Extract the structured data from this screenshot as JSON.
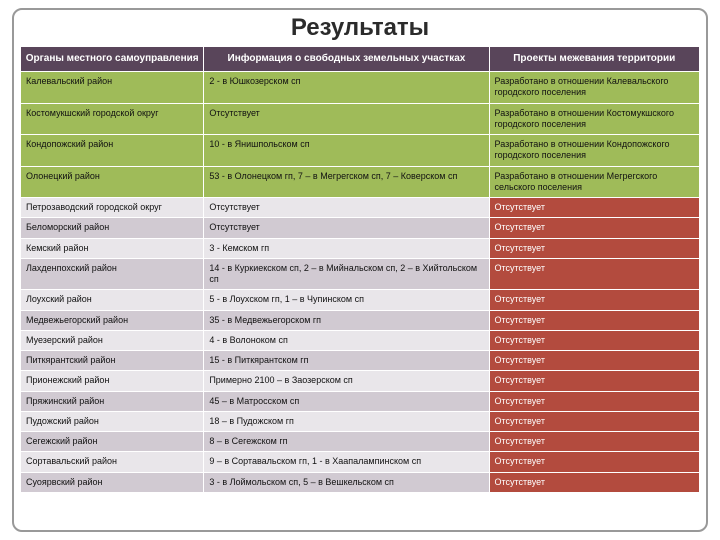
{
  "title": "Результаты",
  "columns": [
    "Органы местного самоуправления",
    "Информация о свободных земельных участках",
    "Проекты межевания территории"
  ],
  "colors": {
    "header_bg": "#59455a",
    "green_bg": "#9fbb59",
    "red_bg": "#b34b3e",
    "light_bg": "#e9e6ea",
    "dark_bg": "#d1cad2",
    "frame_border": "#999999"
  },
  "rows": [
    {
      "style": "green",
      "c1": "Калевальский район",
      "c2": "2 - в Юшкозерском сп",
      "c3": "Разработано в отношении Калевальского городского поселения"
    },
    {
      "style": "green",
      "c1": "Костомукшский городской округ",
      "c2": "Отсутствует",
      "c3": "Разработано в отношении Костомукшского городского поселения"
    },
    {
      "style": "green",
      "c1": "Кондопожский район",
      "c2": "10 - в Янишпольском сп",
      "c3": "Разработано в отношении Кондопожского городского поселения"
    },
    {
      "style": "green",
      "c1": "Олонецкий район",
      "c2": "53 - в Олонецком гп, 7 – в Мегрегском сп, 7 – Коверском сп",
      "c3": "Разработано в отношении Мегрегского сельского поселения"
    },
    {
      "style": "light",
      "c1": "Петрозаводский городской округ",
      "c2": "Отсутствует",
      "c3": "Отсутствует"
    },
    {
      "style": "dark",
      "c1": "Беломорский район",
      "c2": "Отсутствует",
      "c3": "Отсутствует"
    },
    {
      "style": "light",
      "c1": "Кемский район",
      "c2": "3 - Кемском гп",
      "c3": "Отсутствует"
    },
    {
      "style": "dark",
      "c1": "Лахденпохский район",
      "c2": "14 - в Куркиекском сп, 2 – в Мийнальском сп, 2 – в Хийтольском сп",
      "c3": "Отсутствует"
    },
    {
      "style": "light",
      "c1": "Лоухский район",
      "c2": "5 - в Лоухском гп, 1 – в Чупинском сп",
      "c3": "Отсутствует"
    },
    {
      "style": "dark",
      "c1": "Медвежьегорский район",
      "c2": "35 - в Медвежьегорском гп",
      "c3": "Отсутствует"
    },
    {
      "style": "light",
      "c1": "Муезерский район",
      "c2": "4 - в Волоноком сп",
      "c3": "Отсутствует"
    },
    {
      "style": "dark",
      "c1": "Питкярантский район",
      "c2": "15 - в Питкярантском гп",
      "c3": "Отсутствует"
    },
    {
      "style": "light",
      "c1": "Прионежский район",
      "c2": "Примерно 2100 – в Заозерском сп",
      "c3": "Отсутствует"
    },
    {
      "style": "dark",
      "c1": "Пряжинский район",
      "c2": "45 – в Матросском сп",
      "c3": "Отсутствует"
    },
    {
      "style": "light",
      "c1": "Пудожский район",
      "c2": "18 – в Пудожском гп",
      "c3": "Отсутствует"
    },
    {
      "style": "dark",
      "c1": "Сегежский район",
      "c2": "8 – в Сегежском гп",
      "c3": "Отсутствует"
    },
    {
      "style": "light",
      "c1": "Сортавальский район",
      "c2": "9 – в Сортавальском гп, 1 - в Хаапалампинском сп",
      "c3": "Отсутствует"
    },
    {
      "style": "dark",
      "c1": "Суоярвский район",
      "c2": "3 - в Лоймольском сп, 5 – в Вешкельском сп",
      "c3": "Отсутствует"
    }
  ]
}
